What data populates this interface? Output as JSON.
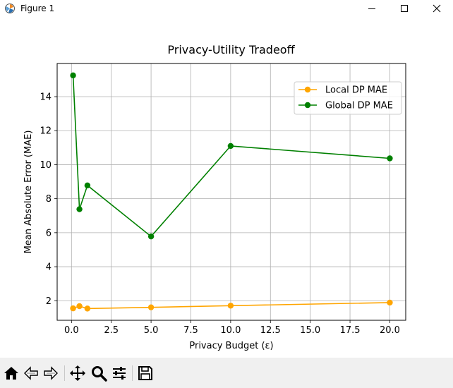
{
  "window": {
    "title": "Figure 1"
  },
  "toolbar": {
    "buttons": [
      {
        "icon": "home-icon"
      },
      {
        "icon": "back-arrow-icon"
      },
      {
        "icon": "forward-arrow-icon"
      },
      {
        "icon": "pan-move-icon"
      },
      {
        "icon": "zoom-magnifier-icon"
      },
      {
        "icon": "configure-subplots-icon"
      },
      {
        "icon": "save-floppy-icon"
      }
    ]
  },
  "chart_data": {
    "type": "line",
    "title": "Privacy-Utility Tradeoff",
    "xlabel": "Privacy Budget (ε)",
    "ylabel": "Mean Absolute Error (MAE)",
    "xlim": [
      -0.9,
      21.0
    ],
    "ylim": [
      0.85,
      15.95
    ],
    "xticks": [
      0.0,
      2.5,
      5.0,
      7.5,
      10.0,
      12.5,
      15.0,
      17.5,
      20.0
    ],
    "xtick_labels": [
      "0.0",
      "2.5",
      "5.0",
      "7.5",
      "10.0",
      "12.5",
      "15.0",
      "17.5",
      "20.0"
    ],
    "yticks": [
      2,
      4,
      6,
      8,
      10,
      12,
      14
    ],
    "ytick_labels": [
      "2",
      "4",
      "6",
      "8",
      "10",
      "12",
      "14"
    ],
    "grid": true,
    "legend_position": "upper right",
    "series": [
      {
        "name": "Local DP MAE",
        "color": "#ffa500",
        "marker": "circle",
        "x": [
          0.1,
          0.5,
          1.0,
          5.0,
          10.0,
          20.0
        ],
        "y": [
          1.55,
          1.68,
          1.54,
          1.61,
          1.71,
          1.89
        ]
      },
      {
        "name": "Global DP MAE",
        "color": "#008000",
        "marker": "circle",
        "x": [
          0.1,
          0.5,
          1.0,
          5.0,
          10.0,
          20.0
        ],
        "y": [
          15.25,
          7.38,
          8.78,
          5.78,
          11.1,
          10.37
        ]
      }
    ]
  }
}
